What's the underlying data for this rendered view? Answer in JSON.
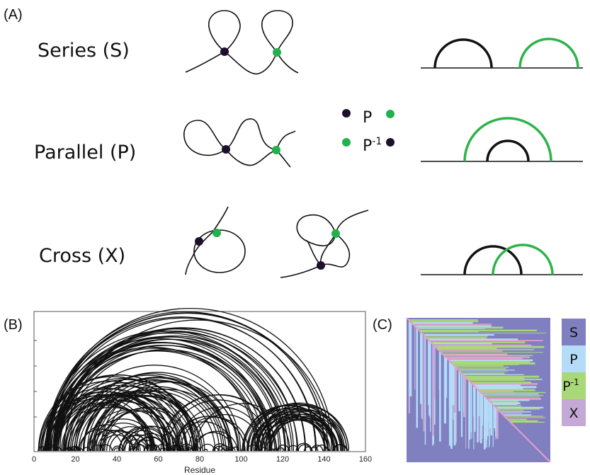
{
  "panels": {
    "a": {
      "label": "(A)"
    },
    "b": {
      "label": "(B)"
    },
    "c": {
      "label": "(C)"
    }
  },
  "types": [
    {
      "key": "series",
      "label": "Series (S)"
    },
    {
      "key": "parallel",
      "label": "Parallel (P)"
    },
    {
      "key": "cross",
      "label": "Cross (X)"
    }
  ],
  "point_legend": {
    "p_label": "P",
    "pinv_base": "P",
    "pinv_exp": "-1"
  },
  "colors": {
    "dark_point": "#1e0f2e",
    "green_point": "#22b24c",
    "arc_green": "#2db34a",
    "key_S": "#8080c0",
    "key_P": "#b4dcf8",
    "key_Pinv": "#a8d878",
    "key_X": "#c4a8d6"
  },
  "chart_data": {
    "type": "arc-diagram",
    "xlabel": "Residue",
    "xlim": [
      0,
      160
    ],
    "x_ticks": [
      "0",
      "20",
      "40",
      "60",
      "80",
      "100",
      "120",
      "140",
      "160"
    ]
  },
  "matrix_key": [
    {
      "key": "S",
      "label": "S",
      "exp": ""
    },
    {
      "key": "P",
      "label": "P",
      "exp": ""
    },
    {
      "key": "Pinv",
      "label": "P",
      "exp": "-1"
    },
    {
      "key": "X",
      "label": "X",
      "exp": ""
    }
  ]
}
